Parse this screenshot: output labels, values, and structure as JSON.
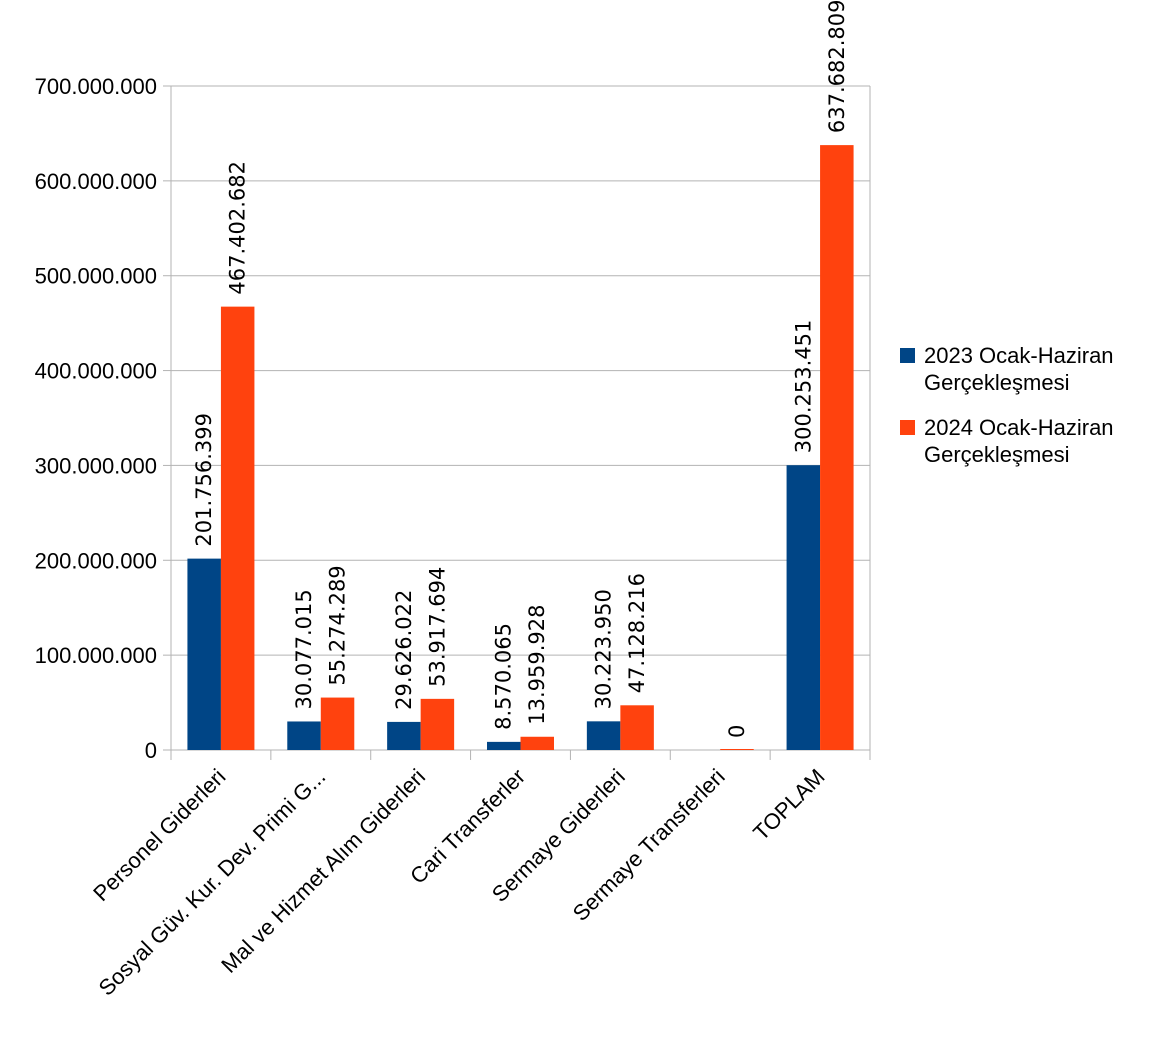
{
  "chart_data": {
    "type": "bar",
    "categories": [
      "Personel Giderleri",
      "Sosyal Güv. Kur. Dev. Primi G...",
      "Mal ve Hizmet Alım Giderleri",
      "Cari Transferler",
      "Sermaye Giderleri",
      "Sermaye Transferleri",
      "TOPLAM"
    ],
    "series": [
      {
        "name": "2023 Ocak-Haziran Gerçekleşmesi",
        "color": "#004586",
        "values": [
          201756399,
          30077015,
          29626022,
          8570065,
          30223950,
          null,
          300253451
        ],
        "labels": [
          "201.756.399",
          "30.077.015",
          "29.626.022",
          "8.570.065",
          "30.223.950",
          "",
          "300.253.451"
        ]
      },
      {
        "name": "2024 Ocak-Haziran Gerçekleşmesi",
        "color": "#ff420e",
        "values": [
          467402682,
          55274289,
          53917694,
          13959928,
          47128216,
          0,
          637682809
        ],
        "labels": [
          "467.402.682",
          "55.274.289",
          "53.917.694",
          "13.959.928",
          "47.128.216",
          "0",
          "637.682.809"
        ]
      }
    ],
    "legend_lines": [
      [
        "2023 Ocak-Haziran",
        "Gerçekleşmesi"
      ],
      [
        "2024 Ocak-Haziran",
        "Gerçekleşmesi"
      ]
    ],
    "ylim": [
      0,
      700000000
    ],
    "yticks": [
      0,
      100000000,
      200000000,
      300000000,
      400000000,
      500000000,
      600000000,
      700000000
    ],
    "ytick_labels": [
      "0",
      "100.000.000",
      "200.000.000",
      "300.000.000",
      "400.000.000",
      "500.000.000",
      "600.000.000",
      "700.000.000"
    ],
    "grid": true,
    "legend_position": "right",
    "title": "",
    "xlabel": "",
    "ylabel": ""
  }
}
